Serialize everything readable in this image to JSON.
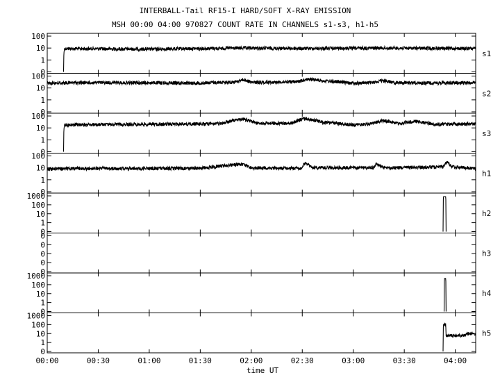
{
  "chart_data": {
    "type": "line",
    "title": "INTERBALL-Tail RF15-I HARD/SOFT X-RAY EMISSION",
    "subtitle": "MSH 00:00 04:00 970827  COUNT RATE IN CHANNELS s1-s3, h1-h5",
    "xlabel": "time UT",
    "x_ticks": [
      "00:00",
      "00:30",
      "01:00",
      "01:30",
      "02:00",
      "02:30",
      "03:00",
      "03:30",
      "04:00"
    ],
    "x_range_hours": [
      0,
      4.2
    ],
    "y_scale": "log",
    "grid": false,
    "legend": "right of each panel",
    "panels": [
      {
        "name": "s1",
        "y_ticks": [
          "100",
          "10",
          "1",
          "0"
        ],
        "series": [
          {
            "t": 0.16,
            "v": 0
          },
          {
            "t": 0.17,
            "v": 9
          },
          {
            "t": 1.0,
            "v": 8
          },
          {
            "t": 1.9,
            "v": 10
          },
          {
            "t": 2.5,
            "v": 9
          },
          {
            "t": 3.2,
            "v": 10
          },
          {
            "t": 4.2,
            "v": 9
          }
        ]
      },
      {
        "name": "s2",
        "y_ticks": [
          "100",
          "10",
          "1",
          "0"
        ],
        "series": [
          {
            "t": 0.0,
            "v": 26
          },
          {
            "t": 0.5,
            "v": 28
          },
          {
            "t": 1.5,
            "v": 26
          },
          {
            "t": 1.85,
            "v": 32
          },
          {
            "t": 1.92,
            "v": 50
          },
          {
            "t": 2.0,
            "v": 30
          },
          {
            "t": 2.45,
            "v": 32
          },
          {
            "t": 2.55,
            "v": 55
          },
          {
            "t": 2.7,
            "v": 40
          },
          {
            "t": 3.0,
            "v": 25
          },
          {
            "t": 3.2,
            "v": 28
          },
          {
            "t": 3.28,
            "v": 42
          },
          {
            "t": 3.4,
            "v": 28
          },
          {
            "t": 3.7,
            "v": 26
          },
          {
            "t": 4.2,
            "v": 28
          }
        ]
      },
      {
        "name": "s3",
        "y_ticks": [
          "100",
          "10",
          "1",
          "0"
        ],
        "series": [
          {
            "t": 0.16,
            "v": 0
          },
          {
            "t": 0.17,
            "v": 18
          },
          {
            "t": 1.0,
            "v": 20
          },
          {
            "t": 1.7,
            "v": 22
          },
          {
            "t": 1.92,
            "v": 55
          },
          {
            "t": 2.05,
            "v": 25
          },
          {
            "t": 2.4,
            "v": 24
          },
          {
            "t": 2.52,
            "v": 60
          },
          {
            "t": 2.7,
            "v": 30
          },
          {
            "t": 3.0,
            "v": 18
          },
          {
            "t": 3.15,
            "v": 20
          },
          {
            "t": 3.3,
            "v": 40
          },
          {
            "t": 3.45,
            "v": 22
          },
          {
            "t": 3.6,
            "v": 35
          },
          {
            "t": 3.8,
            "v": 20
          },
          {
            "t": 4.2,
            "v": 22
          }
        ]
      },
      {
        "name": "h1",
        "y_ticks": [
          "100",
          "10",
          "1",
          "0"
        ],
        "series": [
          {
            "t": 0.0,
            "v": 8
          },
          {
            "t": 0.5,
            "v": 9
          },
          {
            "t": 1.5,
            "v": 9
          },
          {
            "t": 1.9,
            "v": 20
          },
          {
            "t": 2.0,
            "v": 10
          },
          {
            "t": 2.5,
            "v": 9
          },
          {
            "t": 2.52,
            "v": 22
          },
          {
            "t": 2.6,
            "v": 10
          },
          {
            "t": 3.2,
            "v": 10
          },
          {
            "t": 3.22,
            "v": 20
          },
          {
            "t": 3.3,
            "v": 10
          },
          {
            "t": 3.88,
            "v": 12
          },
          {
            "t": 3.92,
            "v": 30
          },
          {
            "t": 3.96,
            "v": 12
          },
          {
            "t": 4.2,
            "v": 9
          }
        ]
      },
      {
        "name": "h2",
        "y_ticks": [
          "1000",
          "100",
          "10",
          "1",
          "0"
        ],
        "series": [
          {
            "t": 3.88,
            "v": 0
          },
          {
            "t": 3.885,
            "v": 800
          },
          {
            "t": 3.905,
            "v": 800
          },
          {
            "t": 3.91,
            "v": 0
          }
        ]
      },
      {
        "name": "h3",
        "y_ticks": [
          "0",
          "0",
          "0",
          "0",
          "0"
        ],
        "series": []
      },
      {
        "name": "h4",
        "y_ticks": [
          "1000",
          "100",
          "10",
          "1",
          "0"
        ],
        "series": [
          {
            "t": 3.89,
            "v": 0
          },
          {
            "t": 3.895,
            "v": 500
          },
          {
            "t": 3.905,
            "v": 500
          },
          {
            "t": 3.91,
            "v": 0
          }
        ]
      },
      {
        "name": "h5",
        "y_ticks": [
          "1000",
          "100",
          "10",
          "1",
          "0"
        ],
        "series": [
          {
            "t": 3.88,
            "v": 0
          },
          {
            "t": 3.885,
            "v": 100
          },
          {
            "t": 3.905,
            "v": 100
          },
          {
            "t": 3.91,
            "v": 6
          },
          {
            "t": 4.1,
            "v": 6
          },
          {
            "t": 4.11,
            "v": 10
          },
          {
            "t": 4.2,
            "v": 10
          }
        ]
      }
    ]
  }
}
